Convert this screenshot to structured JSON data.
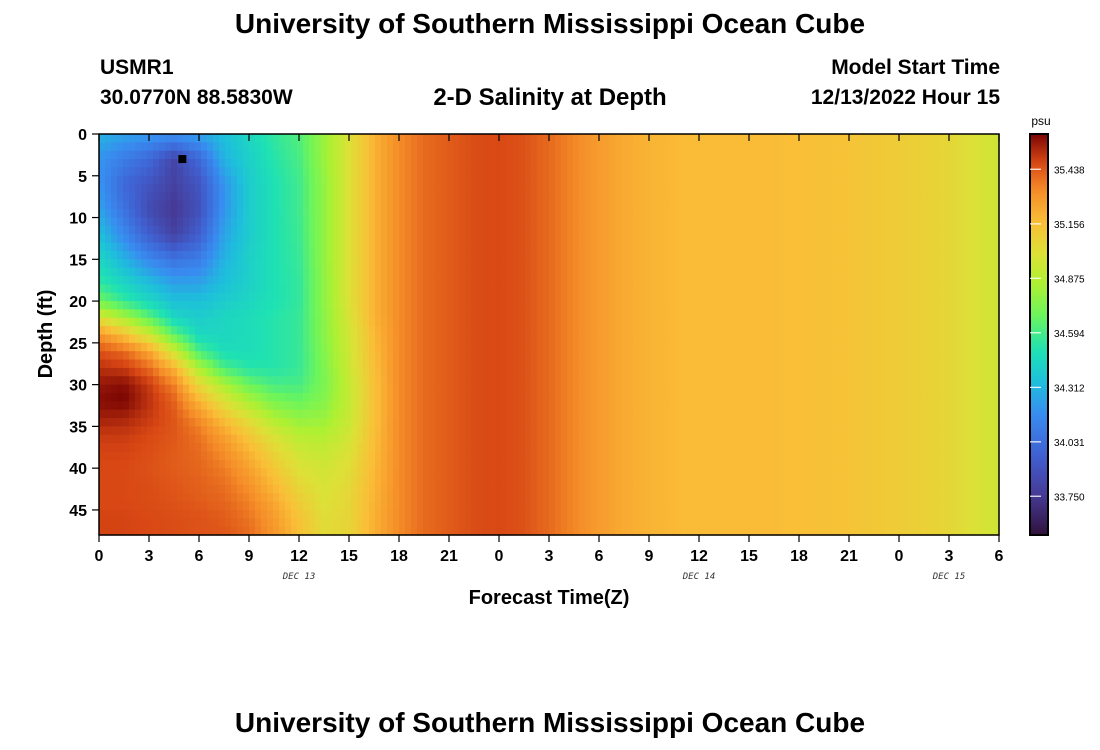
{
  "page": {
    "title_top": "University of Southern Mississippi Ocean Cube",
    "title_bottom": "University of Southern Mississippi Ocean Cube"
  },
  "header": {
    "station_id": "USMR1",
    "station_coords": "30.0770N  88.5830W",
    "plot_title": "2-D Salinity at Depth",
    "run_label": "Model Start Time",
    "run_time": "12/13/2022 Hour 15"
  },
  "chart_data": {
    "type": "heatmap",
    "title": "2-D Salinity at Depth",
    "xlabel": "Forecast Time(Z)",
    "ylabel": "Depth (ft)",
    "x_tick_labels": [
      "0",
      "3",
      "6",
      "9",
      "12",
      "15",
      "18",
      "21",
      "0",
      "3",
      "6",
      "9",
      "12",
      "15",
      "18",
      "21",
      "0",
      "3",
      "6"
    ],
    "x_range_hours": [
      0,
      54
    ],
    "x_tick_step_hours": 3,
    "date_labels": [
      {
        "label": "DEC 13",
        "hour": 12
      },
      {
        "label": "DEC 14",
        "hour": 36
      },
      {
        "label": "DEC 15",
        "hour": 51
      }
    ],
    "y_range_ft": [
      0,
      48
    ],
    "y_tick_labels": [
      "0",
      "5",
      "10",
      "15",
      "20",
      "25",
      "30",
      "35",
      "40",
      "45"
    ],
    "y_ticks_ft": [
      0,
      5,
      10,
      15,
      20,
      25,
      30,
      35,
      40,
      45
    ],
    "marker": {
      "hour": 5,
      "depth_ft": 3
    },
    "colorbar": {
      "unit": "psu",
      "min": 33.55,
      "max": 35.62,
      "tick_labels": [
        "35.438",
        "35.156",
        "34.875",
        "34.594",
        "34.312",
        "34.031",
        "33.750"
      ],
      "tick_values": [
        35.438,
        35.156,
        34.875,
        34.594,
        34.312,
        34.031,
        33.75
      ]
    },
    "salinity_grid_psu": {
      "hours": [
        0,
        1.5,
        3,
        4.5,
        6,
        7.5,
        9,
        10.5,
        12,
        13.5,
        15,
        16.5,
        18,
        19.5,
        21,
        22.5,
        24,
        25.5,
        27,
        28.5,
        30,
        31.5,
        33,
        34.5,
        36,
        37.5,
        39,
        40.5,
        42,
        43.5,
        45,
        46.5,
        48,
        49.5,
        51,
        52.5,
        54
      ],
      "depths_ft": [
        0,
        3,
        6,
        9,
        12,
        15,
        18,
        20,
        22,
        24,
        26,
        28,
        30,
        32,
        34,
        36,
        38,
        40,
        42,
        44,
        46,
        48
      ],
      "values": [
        [
          34.3,
          34.25,
          34.22,
          34.2,
          34.25,
          34.35,
          34.45,
          34.55,
          34.62,
          34.8,
          35.0,
          35.2,
          35.33,
          35.4,
          35.43,
          35.46,
          35.47,
          35.45,
          35.4,
          35.34,
          35.28,
          35.23,
          35.2,
          35.18,
          35.17,
          35.17,
          35.17,
          35.17,
          35.16,
          35.15,
          35.14,
          35.12,
          35.1,
          35.08,
          35.05,
          35.0,
          34.95
        ],
        [
          34.2,
          34.1,
          34.0,
          33.82,
          34.0,
          34.3,
          34.42,
          34.52,
          34.6,
          34.8,
          35.0,
          35.2,
          35.33,
          35.4,
          35.43,
          35.46,
          35.47,
          35.45,
          35.4,
          35.34,
          35.28,
          35.23,
          35.2,
          35.18,
          35.17,
          35.17,
          35.17,
          35.17,
          35.16,
          35.15,
          35.14,
          35.12,
          35.1,
          35.08,
          35.05,
          35.0,
          34.95
        ],
        [
          34.2,
          34.0,
          33.9,
          33.8,
          33.9,
          34.2,
          34.4,
          34.5,
          34.58,
          34.78,
          35.0,
          35.2,
          35.33,
          35.4,
          35.43,
          35.46,
          35.47,
          35.45,
          35.4,
          35.34,
          35.28,
          35.23,
          35.2,
          35.18,
          35.17,
          35.17,
          35.17,
          35.17,
          35.16,
          35.15,
          35.14,
          35.12,
          35.1,
          35.08,
          35.05,
          35.0,
          34.95
        ],
        [
          34.25,
          34.05,
          33.85,
          33.75,
          33.88,
          34.2,
          34.4,
          34.5,
          34.58,
          34.78,
          35.0,
          35.2,
          35.33,
          35.4,
          35.43,
          35.46,
          35.47,
          35.45,
          35.4,
          35.34,
          35.28,
          35.23,
          35.2,
          35.18,
          35.17,
          35.17,
          35.17,
          35.17,
          35.16,
          35.15,
          35.14,
          35.12,
          35.1,
          35.08,
          35.05,
          35.0,
          34.95
        ],
        [
          34.35,
          34.15,
          33.95,
          33.8,
          33.95,
          34.25,
          34.4,
          34.5,
          34.57,
          34.78,
          35.0,
          35.2,
          35.33,
          35.4,
          35.43,
          35.46,
          35.47,
          35.45,
          35.4,
          35.34,
          35.28,
          35.23,
          35.2,
          35.18,
          35.17,
          35.17,
          35.17,
          35.17,
          35.16,
          35.15,
          35.14,
          35.12,
          35.1,
          35.08,
          35.05,
          35.0,
          34.95
        ],
        [
          34.45,
          34.3,
          34.15,
          34.05,
          34.1,
          34.3,
          34.42,
          34.5,
          34.56,
          34.78,
          35.0,
          35.2,
          35.33,
          35.4,
          35.43,
          35.46,
          35.47,
          35.45,
          35.4,
          35.34,
          35.28,
          35.23,
          35.2,
          35.18,
          35.17,
          35.17,
          35.17,
          35.17,
          35.16,
          35.15,
          35.14,
          35.12,
          35.1,
          35.08,
          35.05,
          35.0,
          34.95
        ],
        [
          34.55,
          34.45,
          34.35,
          34.25,
          34.25,
          34.35,
          34.42,
          34.5,
          34.55,
          34.77,
          35.0,
          35.2,
          35.33,
          35.4,
          35.43,
          35.46,
          35.47,
          35.45,
          35.4,
          35.34,
          35.28,
          35.23,
          35.2,
          35.18,
          35.17,
          35.17,
          35.17,
          35.17,
          35.16,
          35.15,
          35.14,
          35.12,
          35.1,
          35.08,
          35.05,
          35.0,
          34.95
        ],
        [
          34.7,
          34.55,
          34.45,
          34.35,
          34.35,
          34.4,
          34.45,
          34.5,
          34.55,
          34.77,
          35.0,
          35.2,
          35.33,
          35.4,
          35.43,
          35.46,
          35.47,
          35.45,
          35.4,
          35.34,
          35.28,
          35.23,
          35.2,
          35.18,
          35.17,
          35.17,
          35.17,
          35.17,
          35.16,
          35.15,
          35.14,
          35.12,
          35.1,
          35.08,
          35.05,
          35.0,
          34.95
        ],
        [
          35.0,
          34.85,
          34.65,
          34.45,
          34.4,
          34.45,
          34.48,
          34.52,
          34.56,
          34.76,
          34.98,
          35.2,
          35.33,
          35.4,
          35.43,
          35.46,
          35.47,
          35.45,
          35.4,
          35.34,
          35.28,
          35.23,
          35.2,
          35.18,
          35.17,
          35.17,
          35.17,
          35.17,
          35.16,
          35.15,
          35.14,
          35.12,
          35.1,
          35.08,
          35.05,
          35.0,
          34.95
        ],
        [
          35.3,
          35.15,
          34.95,
          34.65,
          34.45,
          34.45,
          34.48,
          34.52,
          34.56,
          34.76,
          34.96,
          35.18,
          35.33,
          35.4,
          35.43,
          35.46,
          35.47,
          35.45,
          35.4,
          35.34,
          35.28,
          35.23,
          35.2,
          35.18,
          35.17,
          35.17,
          35.17,
          35.17,
          35.16,
          35.15,
          35.14,
          35.12,
          35.1,
          35.08,
          35.05,
          35.0,
          34.95
        ],
        [
          35.45,
          35.4,
          35.25,
          34.95,
          34.6,
          34.48,
          34.48,
          34.52,
          34.56,
          34.74,
          34.95,
          35.17,
          35.33,
          35.4,
          35.43,
          35.46,
          35.47,
          35.45,
          35.4,
          35.34,
          35.28,
          35.23,
          35.2,
          35.18,
          35.17,
          35.17,
          35.17,
          35.17,
          35.16,
          35.15,
          35.14,
          35.12,
          35.1,
          35.08,
          35.05,
          35.0,
          34.95
        ],
        [
          35.52,
          35.5,
          35.4,
          35.2,
          34.85,
          34.6,
          34.52,
          34.52,
          34.56,
          34.73,
          34.94,
          35.16,
          35.33,
          35.4,
          35.43,
          35.46,
          35.47,
          35.45,
          35.4,
          35.34,
          35.28,
          35.23,
          35.2,
          35.18,
          35.17,
          35.17,
          35.17,
          35.17,
          35.16,
          35.15,
          35.14,
          35.12,
          35.1,
          35.08,
          35.05,
          35.0,
          34.95
        ],
        [
          35.58,
          35.6,
          35.5,
          35.35,
          35.05,
          34.85,
          34.68,
          34.6,
          34.6,
          34.72,
          34.92,
          35.15,
          35.33,
          35.4,
          35.43,
          35.46,
          35.47,
          35.45,
          35.4,
          35.34,
          35.28,
          35.23,
          35.2,
          35.18,
          35.17,
          35.17,
          35.17,
          35.17,
          35.16,
          35.15,
          35.14,
          35.12,
          35.1,
          35.08,
          35.05,
          35.0,
          34.95
        ],
        [
          35.6,
          35.62,
          35.52,
          35.42,
          35.2,
          35.0,
          34.85,
          34.72,
          34.68,
          34.75,
          34.92,
          35.15,
          35.33,
          35.4,
          35.43,
          35.46,
          35.47,
          35.45,
          35.4,
          35.34,
          35.28,
          35.23,
          35.2,
          35.18,
          35.17,
          35.17,
          35.17,
          35.17,
          35.16,
          35.15,
          35.14,
          35.12,
          35.1,
          35.08,
          35.05,
          35.0,
          34.95
        ],
        [
          35.56,
          35.55,
          35.5,
          35.44,
          35.32,
          35.15,
          35.0,
          34.85,
          34.78,
          34.8,
          34.93,
          35.15,
          35.33,
          35.4,
          35.43,
          35.46,
          35.47,
          35.45,
          35.4,
          35.34,
          35.28,
          35.23,
          35.2,
          35.18,
          35.17,
          35.17,
          35.17,
          35.17,
          35.16,
          35.15,
          35.14,
          35.12,
          35.1,
          35.08,
          35.05,
          35.0,
          34.95
        ],
        [
          35.5,
          35.5,
          35.47,
          35.44,
          35.38,
          35.26,
          35.12,
          34.98,
          34.88,
          34.87,
          34.96,
          35.16,
          35.33,
          35.4,
          35.43,
          35.46,
          35.47,
          35.45,
          35.4,
          35.34,
          35.28,
          35.23,
          35.2,
          35.18,
          35.17,
          35.17,
          35.17,
          35.17,
          35.16,
          35.15,
          35.14,
          35.12,
          35.1,
          35.08,
          35.05,
          35.0,
          34.95
        ],
        [
          35.48,
          35.48,
          35.46,
          35.43,
          35.4,
          35.32,
          35.2,
          35.06,
          34.95,
          34.92,
          34.99,
          35.17,
          35.33,
          35.4,
          35.43,
          35.46,
          35.47,
          35.45,
          35.4,
          35.34,
          35.28,
          35.23,
          35.2,
          35.18,
          35.17,
          35.17,
          35.17,
          35.17,
          35.16,
          35.15,
          35.14,
          35.12,
          35.1,
          35.08,
          35.05,
          35.0,
          34.95
        ],
        [
          35.47,
          35.47,
          35.45,
          35.43,
          35.41,
          35.36,
          35.26,
          35.12,
          35.0,
          34.96,
          35.02,
          35.18,
          35.33,
          35.4,
          35.43,
          35.46,
          35.47,
          35.45,
          35.4,
          35.34,
          35.28,
          35.23,
          35.2,
          35.18,
          35.17,
          35.17,
          35.17,
          35.17,
          35.16,
          35.15,
          35.14,
          35.12,
          35.1,
          35.08,
          35.05,
          35.0,
          34.95
        ],
        [
          35.47,
          35.47,
          35.46,
          35.44,
          35.42,
          35.39,
          35.31,
          35.18,
          35.05,
          34.98,
          35.04,
          35.19,
          35.33,
          35.4,
          35.43,
          35.46,
          35.47,
          35.45,
          35.4,
          35.34,
          35.28,
          35.23,
          35.2,
          35.18,
          35.17,
          35.17,
          35.17,
          35.17,
          35.16,
          35.15,
          35.14,
          35.12,
          35.1,
          35.08,
          35.05,
          35.0,
          34.95
        ],
        [
          35.47,
          35.47,
          35.46,
          35.45,
          35.43,
          35.41,
          35.35,
          35.24,
          35.1,
          35.0,
          35.05,
          35.2,
          35.33,
          35.4,
          35.43,
          35.46,
          35.47,
          35.45,
          35.4,
          35.34,
          35.28,
          35.23,
          35.2,
          35.18,
          35.17,
          35.17,
          35.17,
          35.17,
          35.16,
          35.15,
          35.14,
          35.12,
          35.1,
          35.08,
          35.05,
          35.0,
          34.95
        ],
        [
          35.48,
          35.48,
          35.47,
          35.46,
          35.45,
          35.43,
          35.38,
          35.28,
          35.14,
          35.02,
          35.06,
          35.21,
          35.33,
          35.4,
          35.43,
          35.46,
          35.47,
          35.45,
          35.4,
          35.34,
          35.28,
          35.23,
          35.2,
          35.18,
          35.17,
          35.17,
          35.17,
          35.17,
          35.16,
          35.15,
          35.14,
          35.12,
          35.1,
          35.08,
          35.05,
          35.0,
          34.95
        ],
        [
          35.48,
          35.48,
          35.47,
          35.46,
          35.45,
          35.44,
          35.4,
          35.3,
          35.16,
          35.03,
          35.06,
          35.21,
          35.33,
          35.4,
          35.43,
          35.46,
          35.47,
          35.45,
          35.4,
          35.34,
          35.28,
          35.23,
          35.2,
          35.18,
          35.17,
          35.17,
          35.17,
          35.17,
          35.16,
          35.15,
          35.14,
          35.12,
          35.1,
          35.08,
          35.05,
          35.0,
          34.95
        ]
      ]
    }
  }
}
